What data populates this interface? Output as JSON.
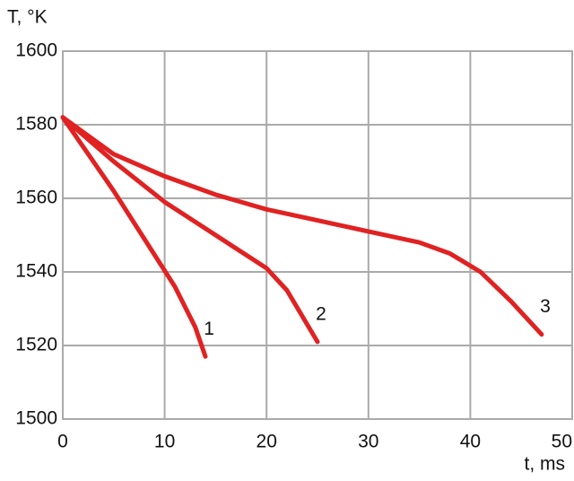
{
  "chart_data": {
    "type": "line",
    "y_label": "T, °K",
    "x_label": "t, ms",
    "xlim": [
      0,
      50
    ],
    "ylim": [
      1500,
      1600
    ],
    "xticks": [
      0,
      10,
      20,
      30,
      40,
      50
    ],
    "yticks": [
      1500,
      1520,
      1540,
      1560,
      1580,
      1600
    ],
    "grid": true,
    "series": [
      {
        "name": "1",
        "color": "#e02222",
        "x": [
          0,
          2,
          5,
          8,
          11,
          13,
          14
        ],
        "values": [
          1582,
          1574,
          1562,
          1549,
          1536,
          1525,
          1517
        ]
      },
      {
        "name": "2",
        "color": "#e02222",
        "x": [
          0,
          5,
          10,
          15,
          20,
          22,
          25
        ],
        "values": [
          1582,
          1570,
          1559,
          1550,
          1541,
          1535,
          1521
        ]
      },
      {
        "name": "3",
        "color": "#e02222",
        "x": [
          0,
          5,
          10,
          15,
          20,
          25,
          30,
          35,
          38,
          41,
          44,
          47
        ],
        "values": [
          1582,
          1572,
          1566,
          1561,
          1557,
          1554,
          1551,
          1548,
          1545,
          1540,
          1532,
          1523
        ]
      }
    ]
  }
}
